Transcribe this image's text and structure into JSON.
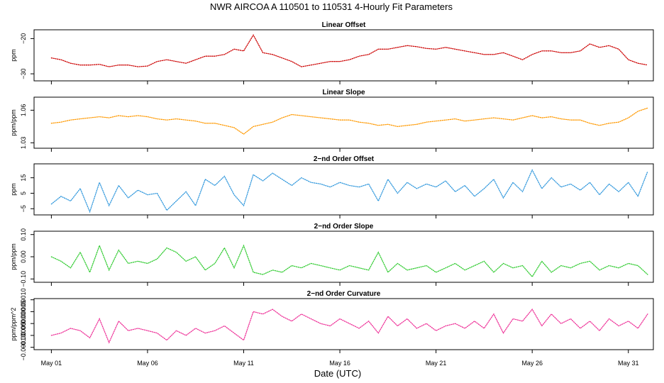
{
  "title": "NWR   AIRCOA A   110501 to 110531   4-Hourly Fit Parameters",
  "xlabel": "Date (UTC)",
  "x_ticks": [
    {
      "day": 1,
      "label": "May 01"
    },
    {
      "day": 6,
      "label": "May 06"
    },
    {
      "day": 11,
      "label": "May 11"
    },
    {
      "day": 16,
      "label": "May 16"
    },
    {
      "day": 21,
      "label": "May 21"
    },
    {
      "day": 26,
      "label": "May 26"
    },
    {
      "day": 31,
      "label": "May 31"
    }
  ],
  "chart_data": [
    {
      "type": "line",
      "title": "Linear Offset",
      "ylabel": "ppm",
      "color": "#cc0000",
      "xlim": [
        0.1,
        32.3
      ],
      "ylim": [
        -32,
        -17.5
      ],
      "yticks": [
        {
          "v": -30,
          "label": "−30"
        },
        {
          "v": -20,
          "label": "−20"
        }
      ],
      "x": [
        1.0,
        1.5,
        2.0,
        2.5,
        3.0,
        3.5,
        4.0,
        4.5,
        5.0,
        5.5,
        6.0,
        6.5,
        7.0,
        7.5,
        8.0,
        8.5,
        9.0,
        9.5,
        10.0,
        10.5,
        11.0,
        11.5,
        12.0,
        12.5,
        13.0,
        13.5,
        14.0,
        14.5,
        15.0,
        15.5,
        16.0,
        16.5,
        17.0,
        17.5,
        18.0,
        18.5,
        19.0,
        19.5,
        20.0,
        20.5,
        21.0,
        21.5,
        22.0,
        22.5,
        23.0,
        23.5,
        24.0,
        24.5,
        25.0,
        25.5,
        26.0,
        26.5,
        27.0,
        27.5,
        28.0,
        28.5,
        29.0,
        29.5,
        30.0,
        30.5,
        31.0,
        31.5,
        32.0
      ],
      "values": [
        -25.5,
        -26,
        -27,
        -27.5,
        -27.5,
        -27.3,
        -28,
        -27.5,
        -27.5,
        -28,
        -27.8,
        -26.5,
        -26,
        -26.5,
        -27,
        -26,
        -25,
        -25,
        -24.5,
        -23,
        -23.5,
        -19,
        -24,
        -24.5,
        -25.5,
        -26.5,
        -28,
        -27.5,
        -27,
        -26.5,
        -26.5,
        -26,
        -25,
        -24.5,
        -23,
        -23,
        -22.5,
        -22,
        -22.3,
        -22.8,
        -23,
        -22.5,
        -23,
        -23.5,
        -24,
        -24.5,
        -24.5,
        -24,
        -25,
        -26,
        -24.5,
        -23.5,
        -23.5,
        -24,
        -24,
        -23.5,
        -21.5,
        -22.5,
        -22,
        -23,
        -26,
        -27,
        -27.5
      ]
    },
    {
      "type": "line",
      "title": "Linear Slope",
      "ylabel": "ppm/ppm",
      "color": "#ff9900",
      "xlim": [
        0.1,
        32.3
      ],
      "ylim": [
        1.025,
        1.072
      ],
      "yticks": [
        {
          "v": 1.03,
          "label": "1.03"
        },
        {
          "v": 1.06,
          "label": "1.06"
        }
      ],
      "x": [
        1.0,
        1.5,
        2.0,
        2.5,
        3.0,
        3.5,
        4.0,
        4.5,
        5.0,
        5.5,
        6.0,
        6.5,
        7.0,
        7.5,
        8.0,
        8.5,
        9.0,
        9.5,
        10.0,
        10.5,
        11.0,
        11.5,
        12.0,
        12.5,
        13.0,
        13.5,
        14.0,
        14.5,
        15.0,
        15.5,
        16.0,
        16.5,
        17.0,
        17.5,
        18.0,
        18.5,
        19.0,
        19.5,
        20.0,
        20.5,
        21.0,
        21.5,
        22.0,
        22.5,
        23.0,
        23.5,
        24.0,
        24.5,
        25.0,
        25.5,
        26.0,
        26.5,
        27.0,
        27.5,
        28.0,
        28.5,
        29.0,
        29.5,
        30.0,
        30.5,
        31.0,
        31.5,
        32.0
      ],
      "values": [
        1.048,
        1.049,
        1.051,
        1.052,
        1.053,
        1.054,
        1.053,
        1.055,
        1.054,
        1.055,
        1.054,
        1.052,
        1.051,
        1.052,
        1.051,
        1.05,
        1.048,
        1.048,
        1.046,
        1.044,
        1.038,
        1.045,
        1.047,
        1.049,
        1.053,
        1.056,
        1.055,
        1.054,
        1.053,
        1.052,
        1.051,
        1.051,
        1.049,
        1.048,
        1.046,
        1.047,
        1.045,
        1.046,
        1.047,
        1.049,
        1.05,
        1.051,
        1.052,
        1.05,
        1.051,
        1.052,
        1.053,
        1.052,
        1.051,
        1.053,
        1.055,
        1.053,
        1.054,
        1.052,
        1.051,
        1.051,
        1.048,
        1.046,
        1.048,
        1.049,
        1.053,
        1.059,
        1.062
      ]
    },
    {
      "type": "line",
      "title": "2−nd Order Offset",
      "ylabel": "ppm",
      "color": "#3399dd",
      "xlim": [
        0.1,
        32.3
      ],
      "ylim": [
        -9,
        24
      ],
      "yticks": [
        {
          "v": -5,
          "label": "−5"
        },
        {
          "v": 5,
          "label": "5"
        },
        {
          "v": 15,
          "label": "15"
        }
      ],
      "x": [
        1.0,
        1.5,
        2.0,
        2.5,
        3.0,
        3.5,
        4.0,
        4.5,
        5.0,
        5.5,
        6.0,
        6.5,
        7.0,
        7.5,
        8.0,
        8.5,
        9.0,
        9.5,
        10.0,
        10.5,
        11.0,
        11.5,
        12.0,
        12.5,
        13.0,
        13.5,
        14.0,
        14.5,
        15.0,
        15.5,
        16.0,
        16.5,
        17.0,
        17.5,
        18.0,
        18.5,
        19.0,
        19.5,
        20.0,
        20.5,
        21.0,
        21.5,
        22.0,
        22.5,
        23.0,
        23.5,
        24.0,
        24.5,
        25.0,
        25.5,
        26.0,
        26.5,
        27.0,
        27.5,
        28.0,
        28.5,
        29.0,
        29.5,
        30.0,
        30.5,
        31.0,
        31.5,
        32.0
      ],
      "values": [
        -2,
        3,
        0,
        8,
        -7,
        12,
        -3,
        10,
        2,
        7,
        4,
        5,
        -6,
        0,
        6,
        -3,
        14,
        10,
        16,
        4,
        -3,
        17,
        13,
        18,
        14,
        10,
        15,
        12,
        11,
        9,
        12,
        10,
        9,
        11,
        0,
        14,
        5,
        12,
        8,
        11,
        9,
        13,
        6,
        10,
        3,
        8,
        14,
        2,
        12,
        6,
        20,
        8,
        15,
        9,
        11,
        7,
        12,
        4,
        11,
        6,
        12,
        3,
        19
      ]
    },
    {
      "type": "line",
      "title": "2−nd Order Slope",
      "ylabel": "ppm/ppm",
      "color": "#33cc33",
      "xlim": [
        0.1,
        32.3
      ],
      "ylim": [
        -0.115,
        0.115
      ],
      "yticks": [
        {
          "v": -0.1,
          "label": "−0.10"
        },
        {
          "v": 0.0,
          "label": "0.00"
        },
        {
          "v": 0.1,
          "label": "0.10"
        }
      ],
      "x": [
        1.0,
        1.5,
        2.0,
        2.5,
        3.0,
        3.5,
        4.0,
        4.5,
        5.0,
        5.5,
        6.0,
        6.5,
        7.0,
        7.5,
        8.0,
        8.5,
        9.0,
        9.5,
        10.0,
        10.5,
        11.0,
        11.5,
        12.0,
        12.5,
        13.0,
        13.5,
        14.0,
        14.5,
        15.0,
        15.5,
        16.0,
        16.5,
        17.0,
        17.5,
        18.0,
        18.5,
        19.0,
        19.5,
        20.0,
        20.5,
        21.0,
        21.5,
        22.0,
        22.5,
        23.0,
        23.5,
        24.0,
        24.5,
        25.0,
        25.5,
        26.0,
        26.5,
        27.0,
        27.5,
        28.0,
        28.5,
        29.0,
        29.5,
        30.0,
        30.5,
        31.0,
        31.5,
        32.0
      ],
      "values": [
        0.0,
        -0.02,
        -0.05,
        0.02,
        -0.07,
        0.05,
        -0.06,
        0.03,
        -0.03,
        -0.02,
        -0.03,
        -0.01,
        0.04,
        0.02,
        -0.02,
        0.0,
        -0.06,
        -0.03,
        0.04,
        -0.05,
        0.05,
        -0.07,
        -0.08,
        -0.06,
        -0.07,
        -0.04,
        -0.05,
        -0.03,
        -0.04,
        -0.05,
        -0.06,
        -0.04,
        -0.05,
        -0.06,
        0.02,
        -0.07,
        -0.03,
        -0.06,
        -0.05,
        -0.04,
        -0.07,
        -0.05,
        -0.03,
        -0.06,
        -0.04,
        -0.02,
        -0.07,
        -0.03,
        -0.05,
        -0.04,
        -0.09,
        -0.02,
        -0.07,
        -0.04,
        -0.05,
        -0.03,
        -0.02,
        -0.06,
        -0.04,
        -0.05,
        -0.03,
        -0.04,
        -0.08
      ]
    },
    {
      "type": "line",
      "title": "2−nd Order Curvature",
      "ylabel": "ppm/ppm^2",
      "color": "#ee3399",
      "xlim": [
        0.1,
        32.3
      ],
      "ylim": [
        -0.00011,
        0.000105
      ],
      "yticks": [
        {
          "v": -0.0001,
          "label": "−0.00010"
        },
        {
          "v": -5e-05,
          "label": "−0.00005"
        },
        {
          "v": 0.0,
          "label": "0.00000"
        },
        {
          "v": 5e-05,
          "label": "0.00005"
        },
        {
          "v": 0.0001,
          "label": "0.00010"
        }
      ],
      "x": [
        1.0,
        1.5,
        2.0,
        2.5,
        3.0,
        3.5,
        4.0,
        4.5,
        5.0,
        5.5,
        6.0,
        6.5,
        7.0,
        7.5,
        8.0,
        8.5,
        9.0,
        9.5,
        10.0,
        10.5,
        11.0,
        11.5,
        12.0,
        12.5,
        13.0,
        13.5,
        14.0,
        14.5,
        15.0,
        15.5,
        16.0,
        16.5,
        17.0,
        17.5,
        18.0,
        18.5,
        19.0,
        19.5,
        20.0,
        20.5,
        21.0,
        21.5,
        22.0,
        22.5,
        23.0,
        23.5,
        24.0,
        24.5,
        25.0,
        25.5,
        26.0,
        26.5,
        27.0,
        27.5,
        28.0,
        28.5,
        29.0,
        29.5,
        30.0,
        30.5,
        31.0,
        31.5,
        32.0
      ],
      "values": [
        -5e-05,
        -4e-05,
        -2e-05,
        -3e-05,
        -6e-05,
        2e-05,
        -8e-05,
        1e-05,
        -3e-05,
        -2e-05,
        -3e-05,
        -4e-05,
        -7e-05,
        -3e-05,
        -5e-05,
        -2e-05,
        -4e-05,
        -3e-05,
        -1e-05,
        -4e-05,
        -7e-05,
        5e-05,
        4e-05,
        6e-05,
        3e-05,
        1e-05,
        4e-05,
        2e-05,
        0.0,
        -1e-05,
        2e-05,
        0.0,
        -2e-05,
        1e-05,
        -4e-05,
        3e-05,
        -1e-05,
        2e-05,
        -2e-05,
        0.0,
        -3e-05,
        -1e-05,
        0.0,
        -2e-05,
        1e-05,
        -2e-05,
        4e-05,
        -4e-05,
        2e-05,
        1e-05,
        6e-05,
        -1e-05,
        4e-05,
        0.0,
        2e-05,
        -2e-05,
        1e-05,
        -3e-05,
        2e-05,
        -1e-05,
        1e-05,
        -2e-05,
        4e-05
      ]
    }
  ]
}
